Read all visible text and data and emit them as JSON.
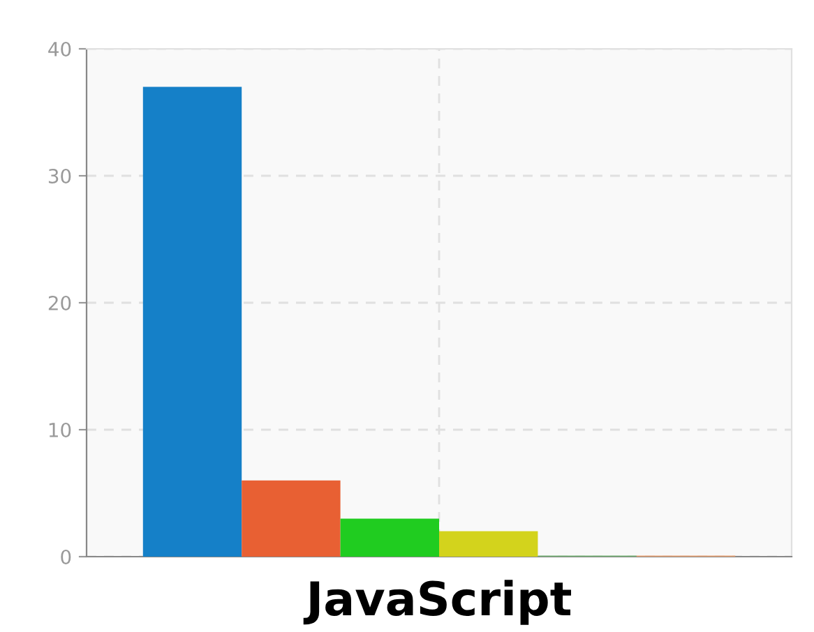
{
  "chart_data": {
    "type": "bar",
    "xlabel": "JavaScript",
    "categories": [
      null
    ],
    "series": [
      {
        "color": "#1580c8",
        "values": [
          37
        ]
      },
      {
        "color": "#e86033",
        "values": [
          6
        ]
      },
      {
        "color": "#20cc20",
        "values": [
          3
        ]
      },
      {
        "color": "#d3d31c",
        "values": [
          2
        ]
      },
      {
        "color": "#70b070",
        "values": [
          0
        ]
      },
      {
        "color": "#e8a070",
        "values": [
          0
        ]
      }
    ],
    "ylim": [
      0,
      40
    ],
    "yticks": [
      0,
      10,
      20,
      30,
      40
    ],
    "grid": true
  }
}
